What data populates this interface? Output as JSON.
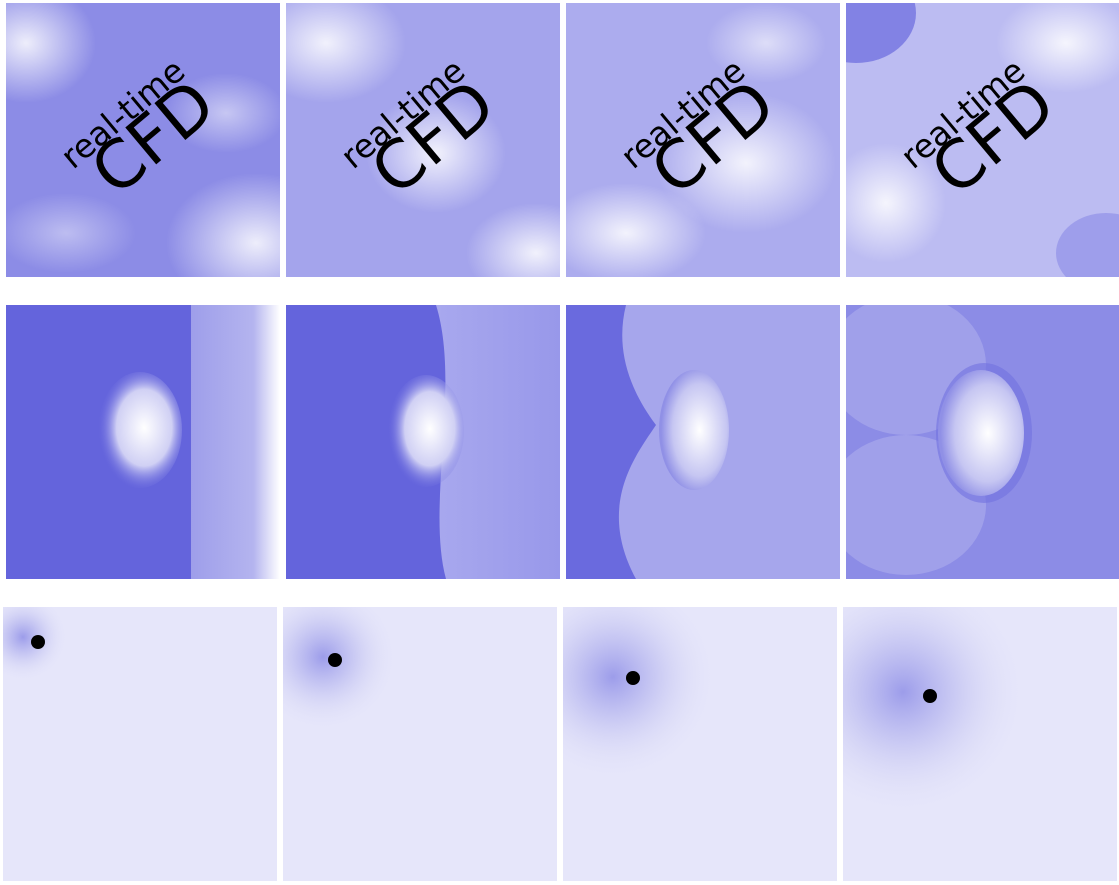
{
  "panels": [
    {
      "small": "real-time",
      "large": "CFD"
    },
    {
      "small": "real-time",
      "large": "CFD"
    },
    {
      "small": "real-time",
      "large": "CFD"
    },
    {
      "small": "real-time",
      "large": "CFD"
    }
  ]
}
